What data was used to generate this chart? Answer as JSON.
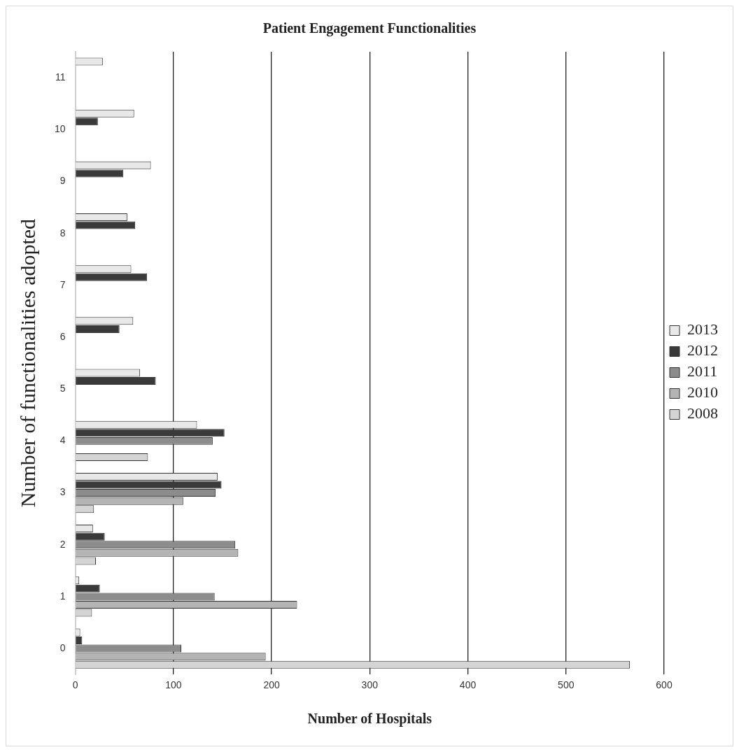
{
  "chart_data": {
    "type": "bar",
    "orientation": "horizontal",
    "title": "Patient Engagement Functionalities",
    "xlabel": "Number of Hospitals",
    "ylabel": "Number of functionalities adopted",
    "categories": [
      "11",
      "10",
      "9",
      "8",
      "7",
      "6",
      "5",
      "4",
      "3",
      "2",
      "1",
      "0"
    ],
    "series": [
      {
        "name": "2013",
        "color": "#e8e8e8",
        "values": [
          28,
          60,
          77,
          53,
          57,
          59,
          66,
          124,
          145,
          18,
          4,
          5
        ]
      },
      {
        "name": "2012",
        "color": "#3a3a3a",
        "values": [
          null,
          23,
          49,
          61,
          73,
          45,
          82,
          152,
          149,
          30,
          25,
          7
        ]
      },
      {
        "name": "2011",
        "color": "#8c8c8c",
        "values": [
          null,
          null,
          null,
          null,
          null,
          null,
          null,
          140,
          143,
          163,
          142,
          108
        ]
      },
      {
        "name": "2010",
        "color": "#b4b4b4",
        "values": [
          null,
          null,
          null,
          null,
          null,
          null,
          null,
          null,
          110,
          166,
          226,
          194
        ]
      },
      {
        "name": "2008",
        "color": "#d4d4d4",
        "values": [
          null,
          null,
          null,
          null,
          null,
          null,
          null,
          74,
          19,
          21,
          17,
          565
        ]
      }
    ],
    "xlim": [
      0,
      600
    ],
    "xticks": [
      0,
      100,
      200,
      300,
      400,
      500,
      600
    ],
    "grid": "x",
    "legend": "right"
  }
}
